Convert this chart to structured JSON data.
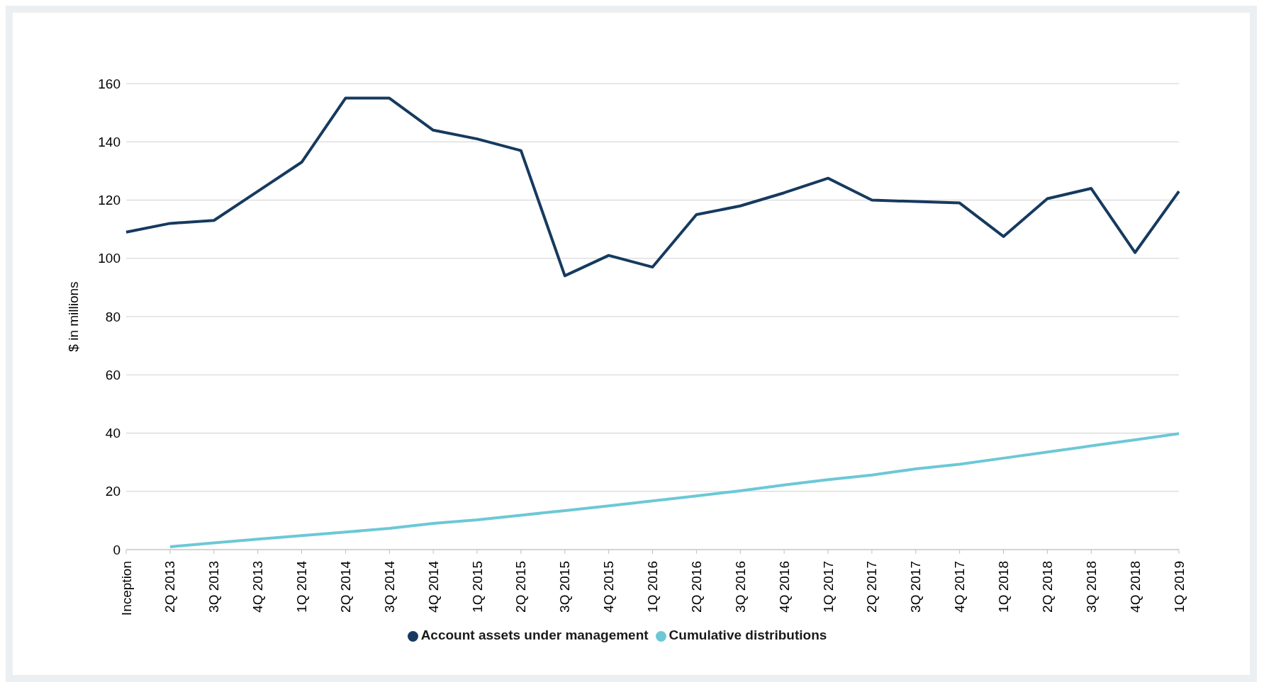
{
  "chart_data": {
    "type": "line",
    "ylabel": "$ in millions",
    "categories": [
      "Inception",
      "2Q 2013",
      "3Q 2013",
      "4Q 2013",
      "1Q 2014",
      "2Q 2014",
      "3Q 2014",
      "4Q 2014",
      "1Q 2015",
      "2Q 2015",
      "3Q 2015",
      "4Q 2015",
      "1Q 2016",
      "2Q 2016",
      "3Q 2016",
      "4Q 2016",
      "1Q 2017",
      "2Q 2017",
      "3Q 2017",
      "4Q 2017",
      "1Q 2018",
      "2Q 2018",
      "3Q 2018",
      "4Q 2018",
      "1Q 2019"
    ],
    "series": [
      {
        "name": "Account assets under management",
        "color": "#163a5f",
        "values": [
          109,
          112,
          113,
          123,
          133,
          155,
          155,
          144,
          141,
          137,
          94,
          101,
          97,
          115,
          118,
          122.5,
          127.5,
          120,
          119.5,
          119,
          107.5,
          120.5,
          124,
          102,
          123
        ]
      },
      {
        "name": "Cumulative distributions",
        "color": "#6cc8d6",
        "values": [
          null,
          1,
          2.3,
          3.6,
          4.8,
          6,
          7.3,
          9,
          10.2,
          11.8,
          13.4,
          15,
          16.7,
          18.4,
          20.2,
          22.2,
          24,
          25.6,
          27.7,
          29.3,
          31.4,
          33.5,
          35.6,
          37.7,
          39.8
        ]
      }
    ],
    "ylim": [
      0,
      160
    ],
    "yticks": [
      0,
      20,
      40,
      60,
      80,
      100,
      120,
      140,
      160
    ],
    "grid": "y",
    "legend": "bottom",
    "marker": "none",
    "line_style": "solid"
  }
}
